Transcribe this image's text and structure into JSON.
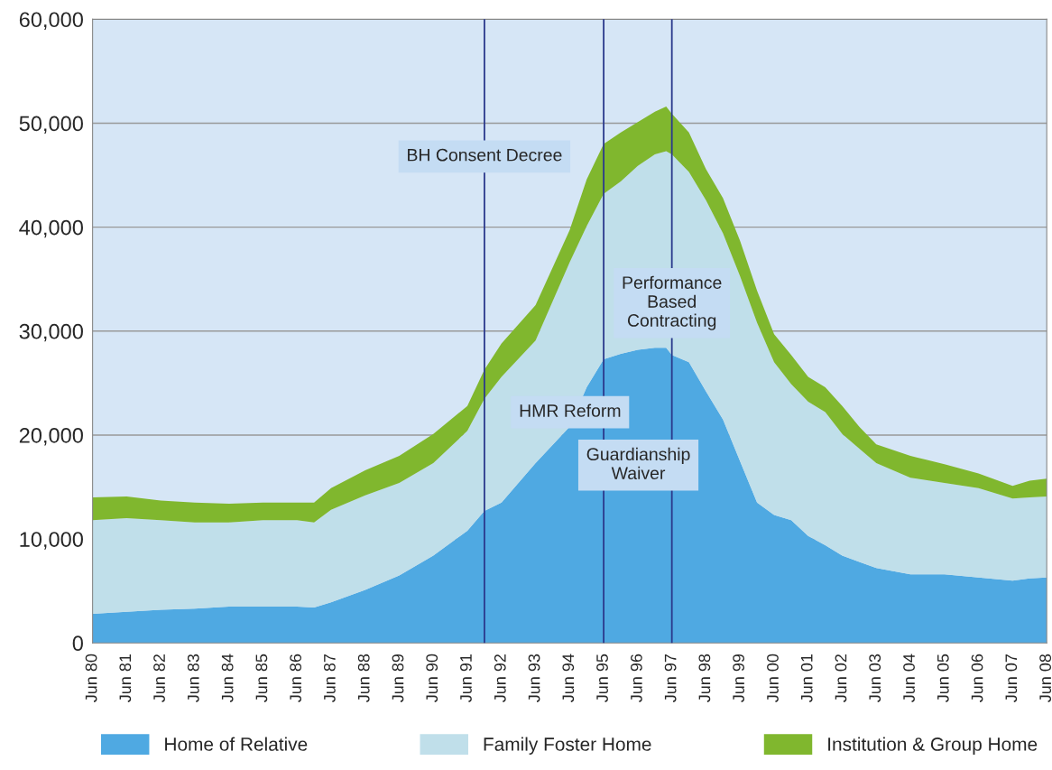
{
  "chart_data": {
    "type": "area",
    "stacked": true,
    "x": [
      "1980-06",
      "1981-06",
      "1982-06",
      "1983-06",
      "1984-06",
      "1985-06",
      "1986-06",
      "1986-12",
      "1987-06",
      "1988-06",
      "1989-06",
      "1990-06",
      "1991-06",
      "1991-12",
      "1992-06",
      "1993-06",
      "1994-06",
      "1994-12",
      "1995-06",
      "1995-12",
      "1996-06",
      "1996-12",
      "1997-04",
      "1997-06",
      "1997-12",
      "1998-06",
      "1998-12",
      "1999-06",
      "1999-12",
      "2000-06",
      "2000-12",
      "2001-06",
      "2001-12",
      "2002-06",
      "2002-12",
      "2003-06",
      "2004-06",
      "2005-06",
      "2006-06",
      "2007-06",
      "2007-12",
      "2008-06"
    ],
    "series": [
      {
        "name": "Home of Relative",
        "color": "#4fa9e2",
        "values": [
          2800,
          3000,
          3200,
          3300,
          3500,
          3500,
          3500,
          3400,
          3900,
          5100,
          6500,
          8400,
          10800,
          12700,
          13500,
          17300,
          20800,
          24600,
          27300,
          27800,
          28200,
          28400,
          28400,
          27700,
          27000,
          24200,
          21500,
          17500,
          13500,
          12300,
          11800,
          10300,
          9400,
          8400,
          7800,
          7200,
          6600,
          6600,
          6300,
          6000,
          6200,
          6300
        ]
      },
      {
        "name": "Family Foster Home",
        "color": "#c0dfea",
        "values": [
          9000,
          9000,
          8600,
          8300,
          8100,
          8300,
          8300,
          8200,
          8900,
          9100,
          8900,
          8900,
          9600,
          10800,
          12100,
          11800,
          15800,
          15500,
          15900,
          16600,
          17700,
          18600,
          18900,
          19300,
          18300,
          18400,
          17900,
          17800,
          17300,
          14700,
          13100,
          12900,
          12800,
          11700,
          10900,
          10100,
          9300,
          8800,
          8600,
          7900,
          7800,
          7800
        ]
      },
      {
        "name": "Institution & Group Home",
        "color": "#80b72e",
        "values": [
          2200,
          2100,
          1900,
          1900,
          1800,
          1700,
          1700,
          1900,
          2100,
          2400,
          2600,
          2800,
          2400,
          2800,
          3200,
          3400,
          3100,
          4500,
          4800,
          4700,
          4200,
          4100,
          4300,
          3900,
          3800,
          3000,
          3400,
          3400,
          3100,
          2700,
          2800,
          2400,
          2400,
          2700,
          2100,
          1800,
          2100,
          1800,
          1400,
          1200,
          1600,
          1700
        ]
      }
    ],
    "xlim": [
      "1980-06",
      "2008-06"
    ],
    "xticks": [
      {
        "value": "1980-06",
        "label": "Jun 80"
      },
      {
        "value": "1981-06",
        "label": "Jun 81"
      },
      {
        "value": "1982-06",
        "label": "Jun 82"
      },
      {
        "value": "1983-06",
        "label": "Jun 83"
      },
      {
        "value": "1984-06",
        "label": "Jun 84"
      },
      {
        "value": "1985-06",
        "label": "Jun 85"
      },
      {
        "value": "1986-06",
        "label": "Jun 86"
      },
      {
        "value": "1987-06",
        "label": "Jun 87"
      },
      {
        "value": "1988-06",
        "label": "Jun 88"
      },
      {
        "value": "1989-06",
        "label": "Jun 89"
      },
      {
        "value": "1990-06",
        "label": "Jun 90"
      },
      {
        "value": "1991-06",
        "label": "Jun 91"
      },
      {
        "value": "1992-06",
        "label": "Jun 92"
      },
      {
        "value": "1993-06",
        "label": "Jun 93"
      },
      {
        "value": "1994-06",
        "label": "Jun 94"
      },
      {
        "value": "1995-06",
        "label": "Jun 95"
      },
      {
        "value": "1996-06",
        "label": "Jun 96"
      },
      {
        "value": "1997-06",
        "label": "Jun 97"
      },
      {
        "value": "1998-06",
        "label": "Jun 98"
      },
      {
        "value": "1999-06",
        "label": "Jun 99"
      },
      {
        "value": "2000-06",
        "label": "Jun 00"
      },
      {
        "value": "2001-06",
        "label": "Jun 01"
      },
      {
        "value": "2002-06",
        "label": "Jun 02"
      },
      {
        "value": "2003-06",
        "label": "Jun 03"
      },
      {
        "value": "2004-06",
        "label": "Jun 04"
      },
      {
        "value": "2005-06",
        "label": "Jun 05"
      },
      {
        "value": "2006-06",
        "label": "Jun 06"
      },
      {
        "value": "2007-06",
        "label": "Jun 07"
      },
      {
        "value": "2008-06",
        "label": "Jun 08"
      }
    ],
    "ylim": [
      0,
      60000
    ],
    "yticks": [
      {
        "value": 0,
        "label": "0"
      },
      {
        "value": 10000,
        "label": "10,000"
      },
      {
        "value": 20000,
        "label": "20,000"
      },
      {
        "value": 30000,
        "label": "30,000"
      },
      {
        "value": 40000,
        "label": "40,000"
      },
      {
        "value": 50000,
        "label": "50,000"
      },
      {
        "value": 60000,
        "label": "60,000"
      }
    ],
    "ref_lines": [
      {
        "axis": "x",
        "value": "1991-12",
        "label": "BH Consent Decree",
        "color": "#2b3a8c"
      },
      {
        "axis": "x",
        "value": "1995-06",
        "label": "HMR Reform",
        "color": "#2b3a8c"
      },
      {
        "axis": "x",
        "value": "1997-06",
        "label": "Performance\nBased\nContracting",
        "color": "#2b3a8c"
      }
    ],
    "annotations": [
      "Guardianship\nWaiver"
    ],
    "grid": "y",
    "legend": "bottom"
  }
}
